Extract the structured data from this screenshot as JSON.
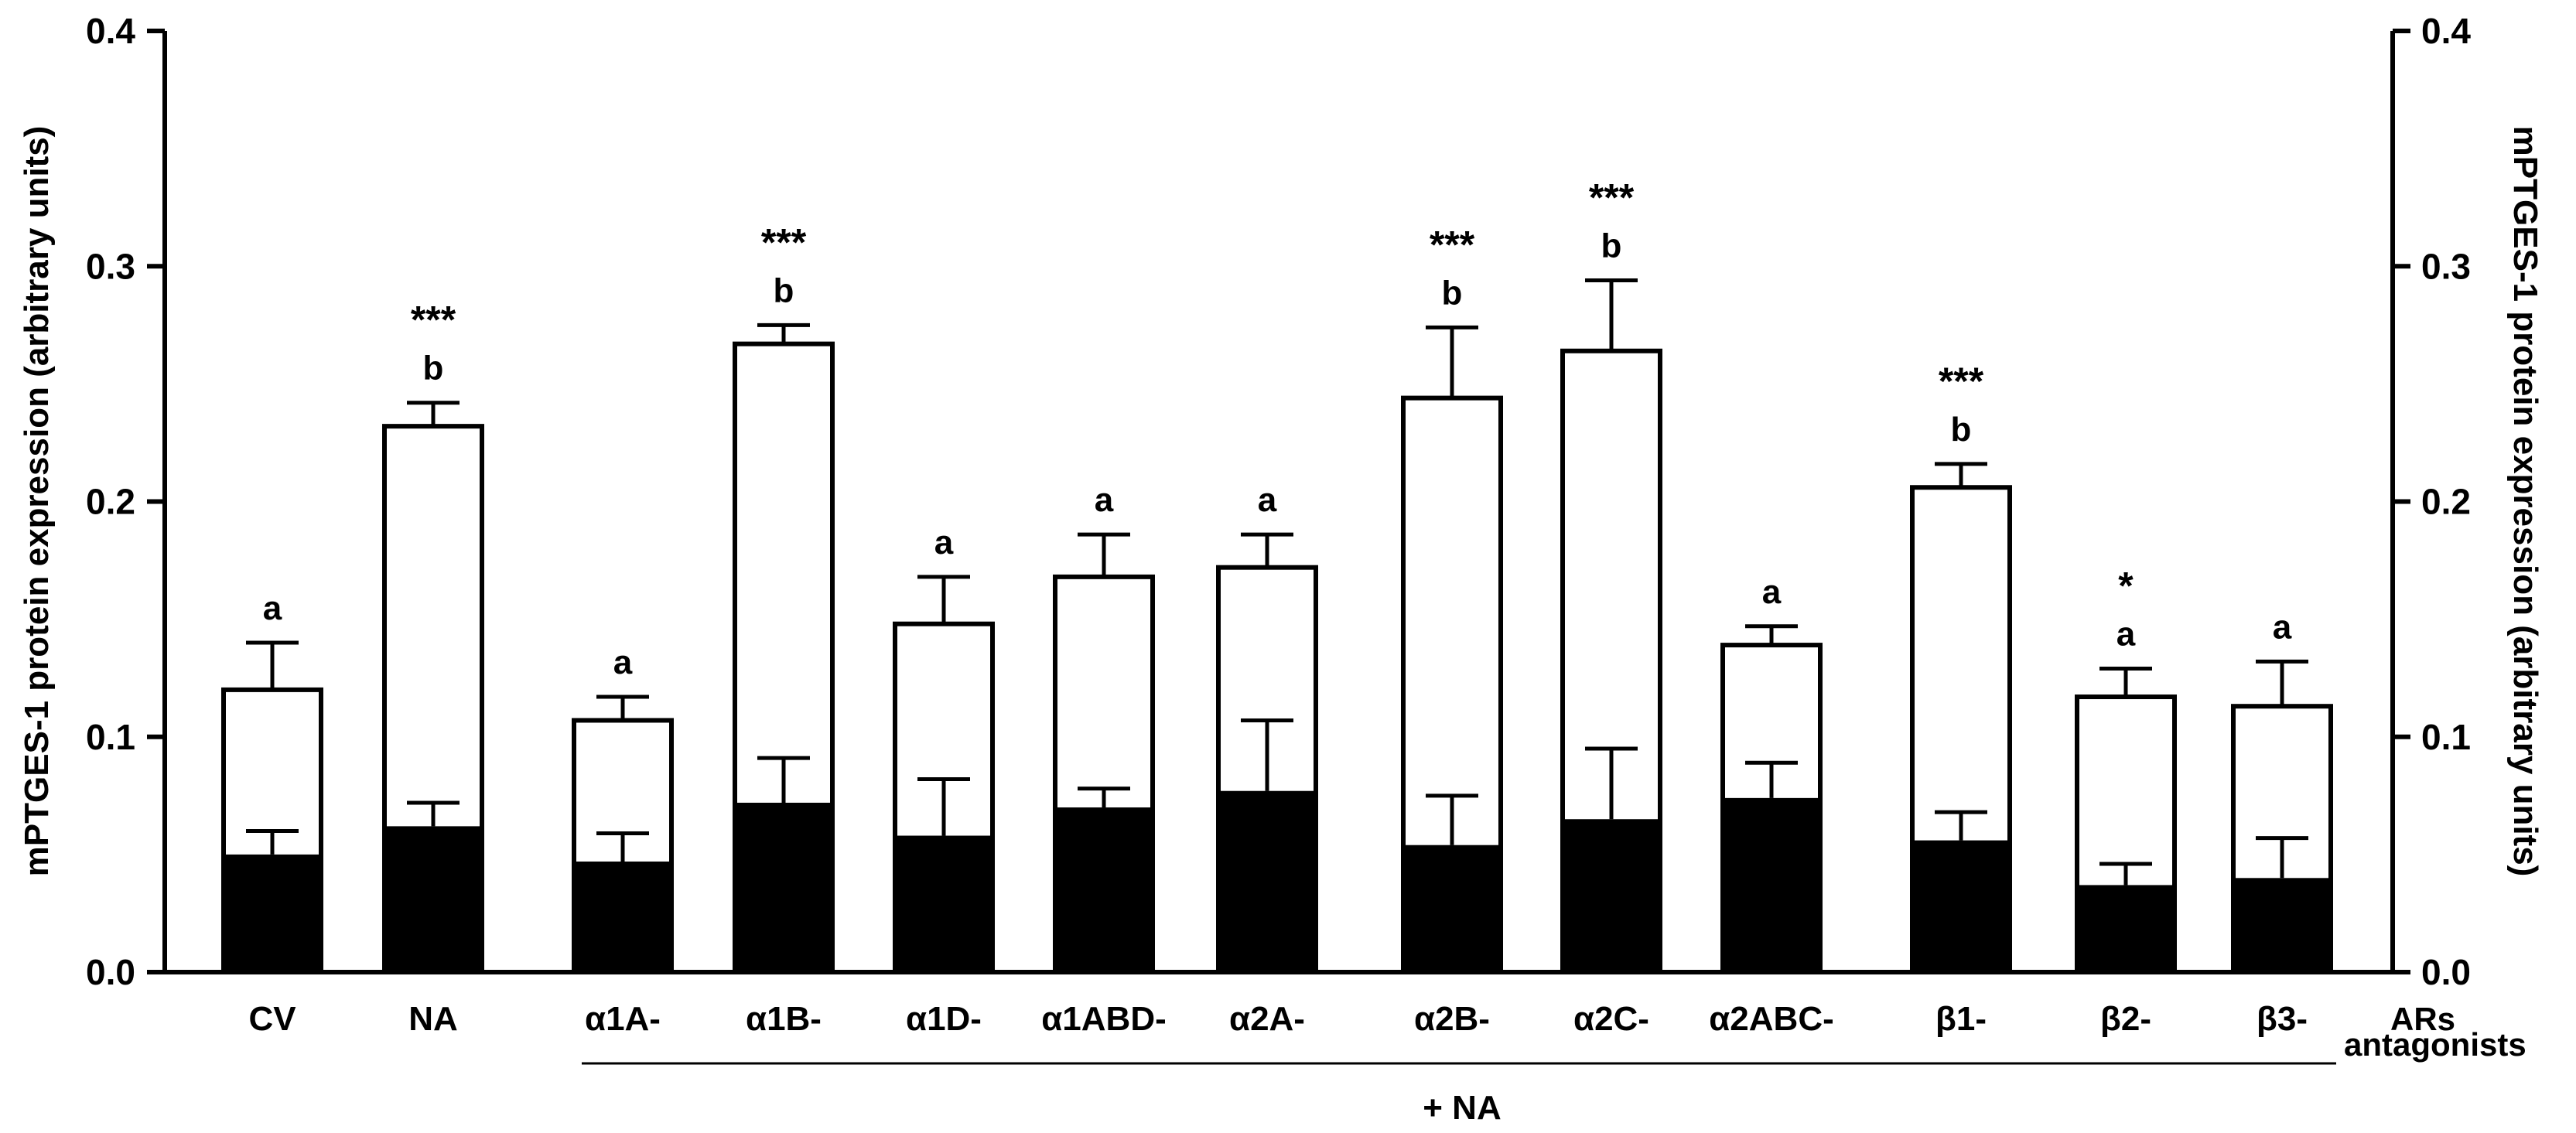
{
  "chart_data": {
    "type": "bar",
    "ylabel_left": "mPTGES-1 protein expression (arbitrary units)",
    "ylabel_right": "mPTGES-1 protein expression (arbitrary units)",
    "ylim": [
      0,
      0.4
    ],
    "yticks": [
      "0.0",
      "0.1",
      "0.2",
      "0.3",
      "0.4"
    ],
    "yticks_right": [
      "0.0",
      "0.1",
      "0.2",
      "0.3",
      "0.4"
    ],
    "categories": [
      "CV",
      "NA",
      "α1A-",
      "α1B-",
      "α1D-",
      "α1ABD-",
      "α2A-",
      "α2B-",
      "α2C-",
      "α2ABC-",
      "β1-",
      "β2-",
      "β3-"
    ],
    "series": [
      {
        "name": "white bars",
        "values": [
          0.12,
          0.232,
          0.107,
          0.267,
          0.148,
          0.168,
          0.172,
          0.244,
          0.264,
          0.139,
          0.206,
          0.117,
          0.113
        ],
        "errors": [
          0.02,
          0.01,
          0.01,
          0.008,
          0.02,
          0.018,
          0.014,
          0.03,
          0.03,
          0.008,
          0.01,
          0.012,
          0.019
        ]
      },
      {
        "name": "black bars",
        "values": [
          0.05,
          0.062,
          0.047,
          0.072,
          0.058,
          0.07,
          0.077,
          0.054,
          0.065,
          0.074,
          0.056,
          0.037,
          0.04
        ],
        "errors": [
          0.01,
          0.01,
          0.012,
          0.019,
          0.024,
          0.008,
          0.03,
          0.021,
          0.03,
          0.015,
          0.012,
          0.009,
          0.017
        ]
      }
    ],
    "letters": [
      "a",
      "b",
      "a",
      "b",
      "a",
      "a",
      "a",
      "b",
      "b",
      "a",
      "b",
      "a",
      "a"
    ],
    "stars": [
      "",
      "***",
      "",
      "***",
      "",
      "",
      "",
      "***",
      "***",
      "",
      "***",
      "*",
      ""
    ],
    "annotations": {
      "bracket_label": "+ NA",
      "side_label_line1": "ARs",
      "side_label_line2": "antagonists"
    }
  }
}
